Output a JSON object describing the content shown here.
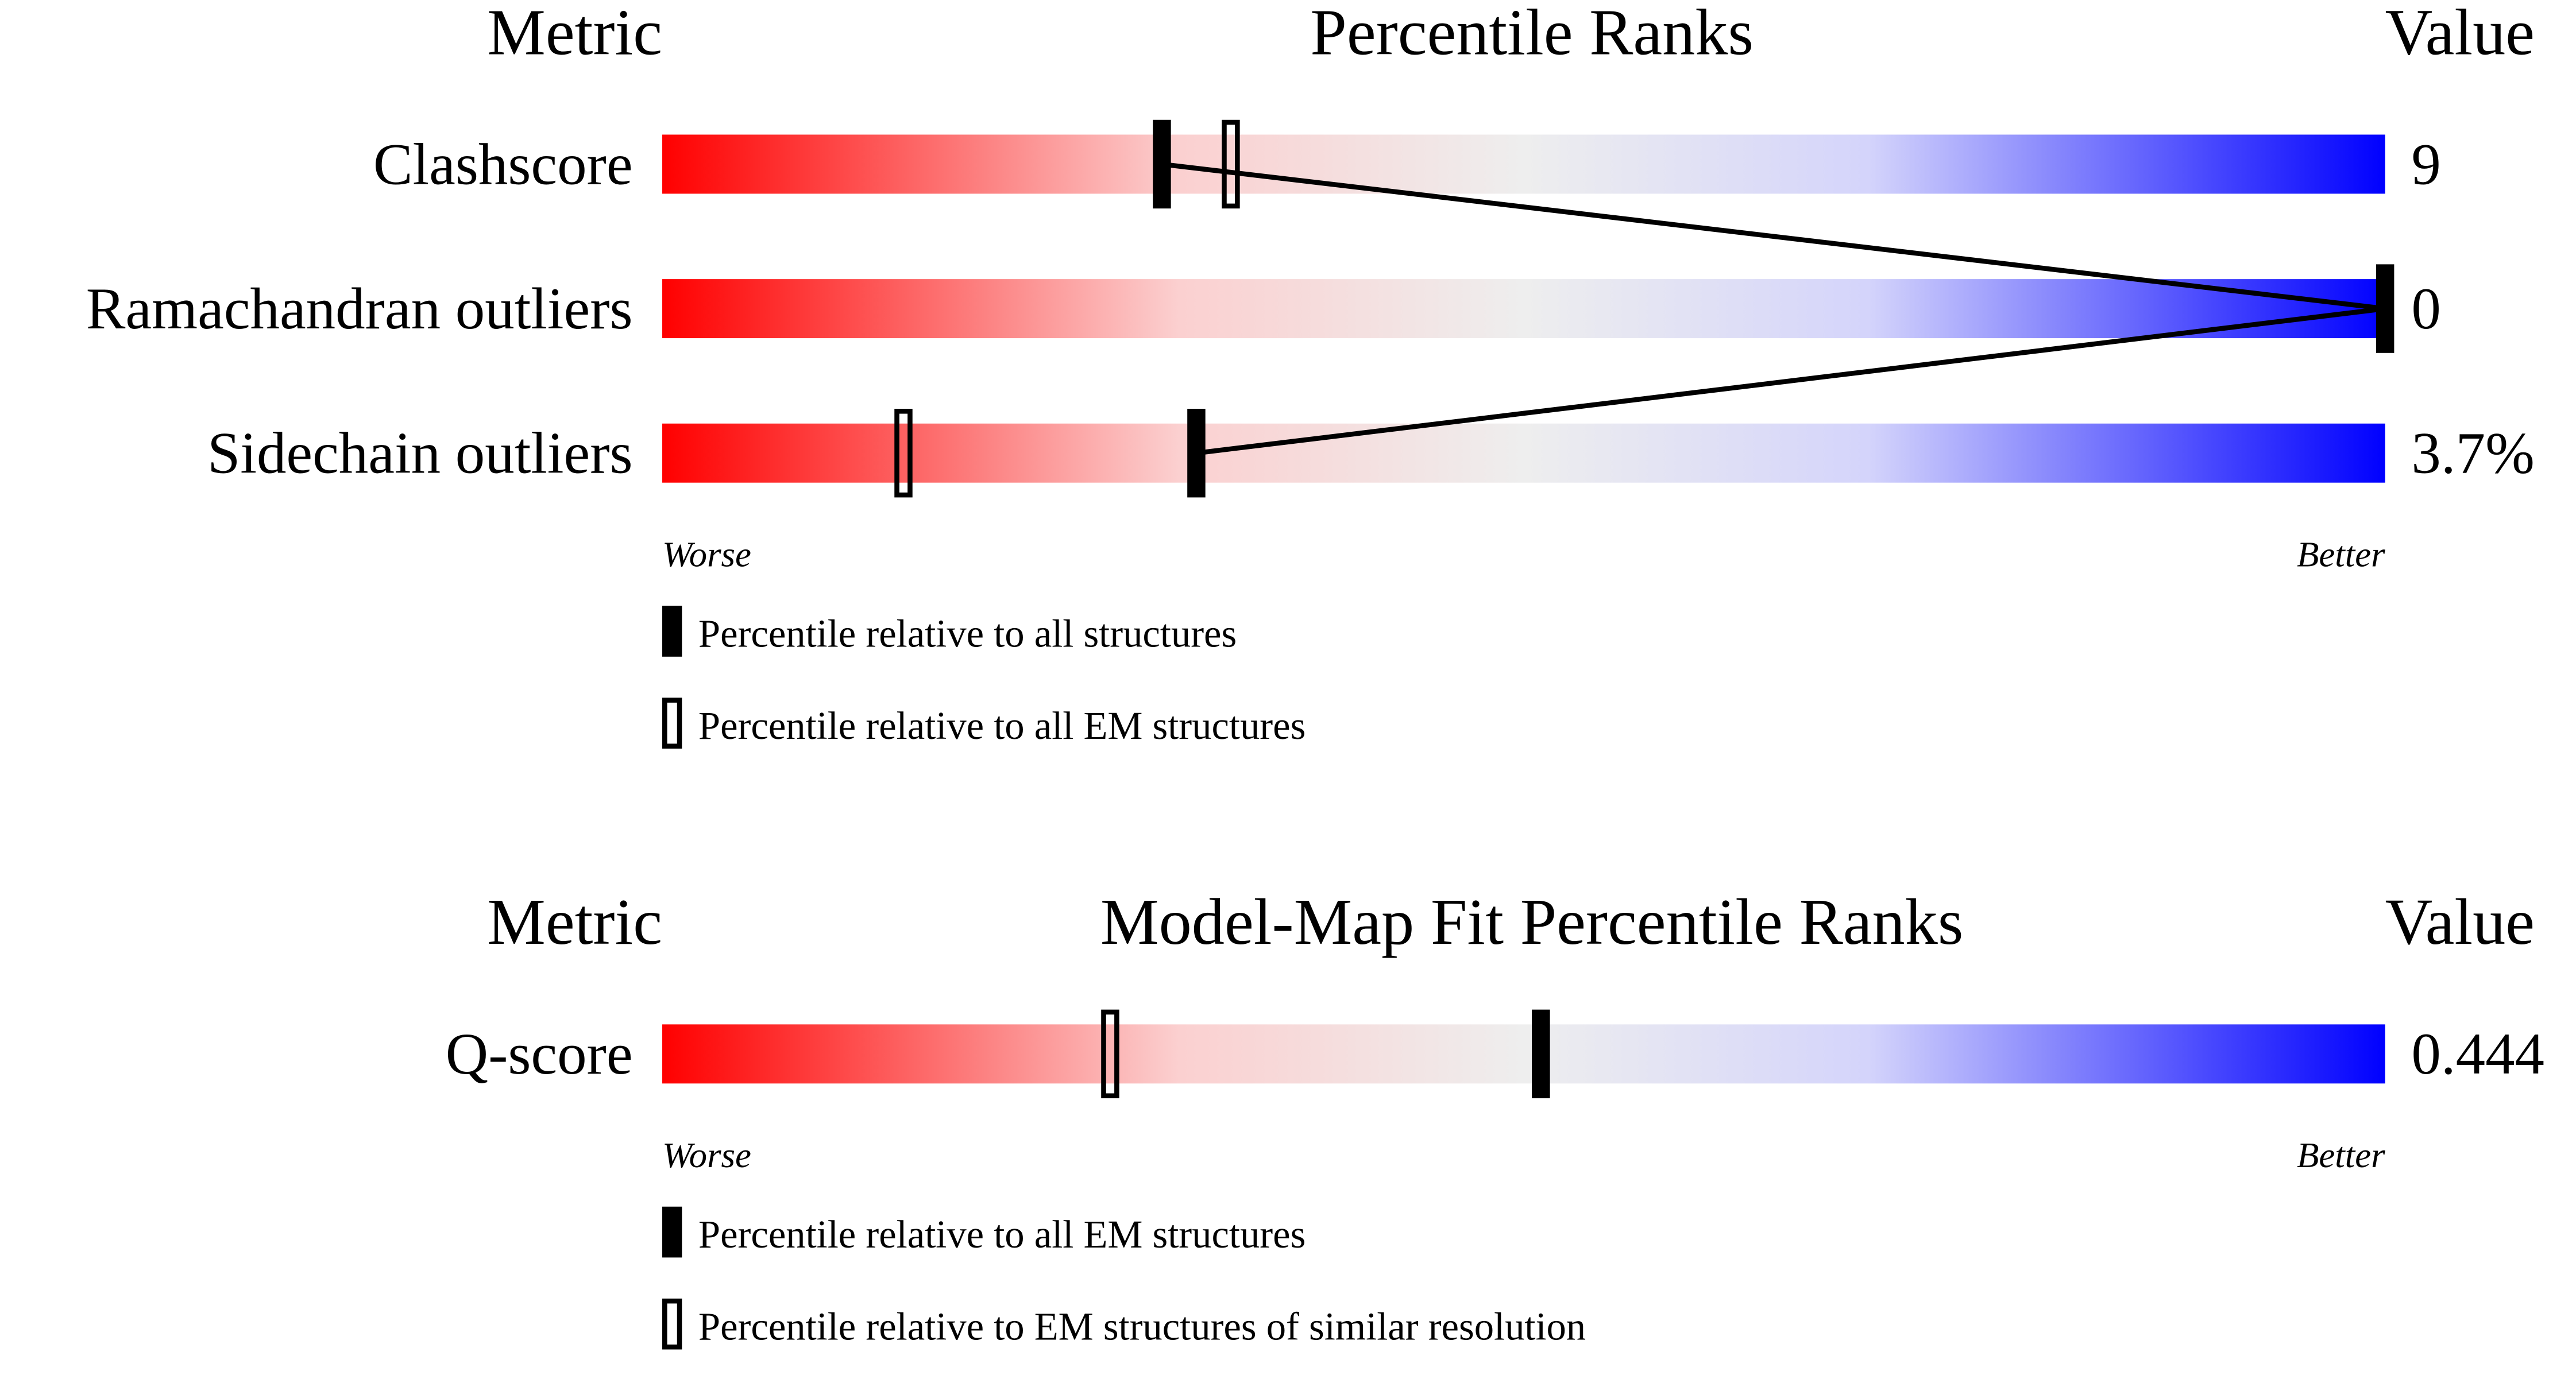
{
  "chart_data": [
    {
      "type": "percentile-slider",
      "metric_header": "Metric",
      "title": "Percentile Ranks",
      "value_header": "Value",
      "categories": [
        "Clashscore",
        "Ramachandran outliers",
        "Sidechain outliers"
      ],
      "metric_values": [
        "9",
        "0",
        "3.7%"
      ],
      "series": [
        {
          "name": "Percentile relative to all structures",
          "style": "filled",
          "color": "#000000",
          "values": [
            29,
            100,
            31
          ]
        },
        {
          "name": "Percentile relative to all EM structures",
          "style": "open",
          "color": "#000000",
          "values": [
            33,
            null,
            14
          ]
        }
      ],
      "xlim": [
        0,
        100
      ],
      "worse_label": "Worse",
      "better_label": "Better",
      "connect": "filled"
    },
    {
      "type": "percentile-slider",
      "metric_header": "Metric",
      "title": "Model-Map Fit Percentile Ranks",
      "value_header": "Value",
      "categories": [
        "Q-score"
      ],
      "metric_values": [
        "0.444"
      ],
      "series": [
        {
          "name": "Percentile relative to all EM structures",
          "style": "filled",
          "color": "#000000",
          "values": [
            51
          ]
        },
        {
          "name": "Percentile relative to EM structures of similar resolution",
          "style": "open",
          "color": "#000000",
          "values": [
            26
          ]
        }
      ],
      "xlim": [
        0,
        100
      ],
      "worse_label": "Worse",
      "better_label": "Better",
      "connect": "filled"
    }
  ]
}
